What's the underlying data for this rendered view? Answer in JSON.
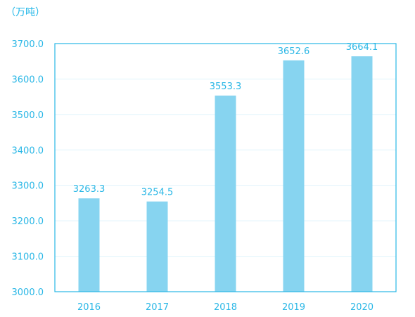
{
  "chart_data": {
    "type": "bar",
    "unit_label": "（万吨）",
    "categories": [
      "2016",
      "2017",
      "2018",
      "2019",
      "2020"
    ],
    "values": [
      3263.3,
      3254.5,
      3553.3,
      3652.6,
      3664.1
    ],
    "value_labels": [
      "3263.3",
      "3254.5",
      "3553.3",
      "3652.6",
      "3664.1"
    ],
    "yticks": [
      "3000.0",
      "3100.0",
      "3200.0",
      "3300.0",
      "3400.0",
      "3500.0",
      "3600.0",
      "3700.0"
    ],
    "ylim": [
      3000,
      3700
    ],
    "grid": true,
    "colors": {
      "bar": "#87d4f0",
      "text": "#2ab7e6",
      "frame": "#2ab7e6",
      "grid": "#dff4fb"
    }
  }
}
